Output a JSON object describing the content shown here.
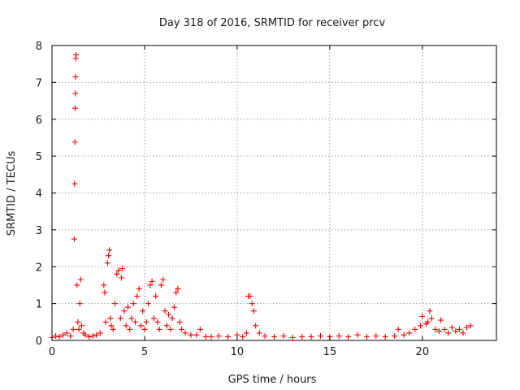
{
  "chart_data": {
    "type": "scatter",
    "title": "Day 318 of 2016, SRMTID for receiver prcv",
    "xlabel": "GPS time / hours",
    "ylabel": "SRMTID / TECUs",
    "xlim": [
      0,
      24
    ],
    "ylim": [
      0,
      8
    ],
    "xticks": [
      0,
      5,
      10,
      15,
      20
    ],
    "yticks": [
      0,
      1,
      2,
      3,
      4,
      5,
      6,
      7,
      8
    ],
    "xtick_labels": [
      "0",
      "5",
      "10",
      "15",
      "20"
    ],
    "ytick_labels": [
      "0",
      "1",
      "2",
      "3",
      "4",
      "5",
      "6",
      "7",
      "8"
    ],
    "grid": true,
    "marker": "+",
    "series": [
      {
        "name": "SRMTID",
        "color": "#ff0000",
        "x": [
          0.0,
          0.2,
          0.4,
          0.6,
          0.8,
          1.0,
          1.15,
          1.2,
          1.22,
          1.24,
          1.25,
          1.26,
          1.27,
          1.28,
          1.3,
          1.35,
          1.4,
          1.45,
          1.5,
          1.55,
          1.6,
          1.7,
          1.8,
          2.0,
          2.2,
          2.4,
          2.6,
          2.8,
          2.85,
          2.9,
          3.0,
          3.05,
          3.1,
          3.15,
          3.2,
          3.3,
          3.4,
          3.5,
          3.6,
          3.7,
          3.75,
          3.8,
          3.9,
          4.0,
          4.1,
          4.2,
          4.3,
          4.4,
          4.5,
          4.6,
          4.7,
          4.8,
          4.9,
          5.0,
          5.1,
          5.2,
          5.3,
          5.4,
          5.5,
          5.6,
          5.7,
          5.8,
          5.9,
          6.0,
          6.1,
          6.2,
          6.3,
          6.4,
          6.5,
          6.6,
          6.7,
          6.8,
          6.9,
          7.0,
          7.2,
          7.5,
          7.8,
          8.0,
          8.3,
          8.6,
          9.0,
          9.5,
          10.0,
          10.3,
          10.5,
          10.6,
          10.7,
          10.8,
          10.9,
          11.0,
          11.2,
          11.5,
          12.0,
          12.5,
          13.0,
          13.5,
          14.0,
          14.5,
          15.0,
          15.5,
          16.0,
          16.5,
          17.0,
          17.5,
          18.0,
          18.5,
          18.7,
          19.0,
          19.3,
          19.6,
          19.9,
          20.0,
          20.2,
          20.3,
          20.4,
          20.5,
          20.7,
          20.9,
          21.0,
          21.2,
          21.4,
          21.6,
          21.8,
          22.0,
          22.2,
          22.4,
          22.6
        ],
        "y": [
          0.08,
          0.12,
          0.1,
          0.15,
          0.2,
          0.12,
          0.3,
          2.75,
          4.25,
          5.38,
          6.3,
          6.7,
          7.15,
          7.65,
          7.75,
          1.5,
          0.5,
          0.3,
          1.0,
          1.65,
          0.4,
          0.2,
          0.15,
          0.1,
          0.12,
          0.15,
          0.2,
          1.5,
          1.3,
          0.5,
          2.1,
          2.3,
          2.45,
          0.6,
          0.4,
          0.3,
          1.0,
          1.8,
          1.9,
          0.6,
          1.7,
          1.95,
          0.8,
          0.4,
          0.9,
          0.3,
          0.6,
          1.0,
          0.5,
          1.2,
          1.4,
          0.4,
          0.8,
          0.3,
          0.5,
          1.0,
          1.5,
          1.6,
          0.6,
          1.2,
          0.5,
          0.3,
          1.5,
          1.65,
          0.8,
          0.4,
          0.7,
          0.3,
          0.6,
          0.9,
          1.3,
          1.4,
          0.5,
          0.3,
          0.2,
          0.15,
          0.15,
          0.3,
          0.1,
          0.1,
          0.12,
          0.1,
          0.15,
          0.1,
          0.2,
          1.2,
          1.2,
          1.0,
          0.8,
          0.4,
          0.2,
          0.12,
          0.1,
          0.12,
          0.08,
          0.1,
          0.1,
          0.12,
          0.1,
          0.12,
          0.1,
          0.15,
          0.1,
          0.12,
          0.1,
          0.12,
          0.3,
          0.15,
          0.2,
          0.3,
          0.4,
          0.65,
          0.45,
          0.5,
          0.8,
          0.6,
          0.3,
          0.25,
          0.55,
          0.3,
          0.2,
          0.35,
          0.25,
          0.3,
          0.2,
          0.35,
          0.4
        ]
      }
    ]
  }
}
